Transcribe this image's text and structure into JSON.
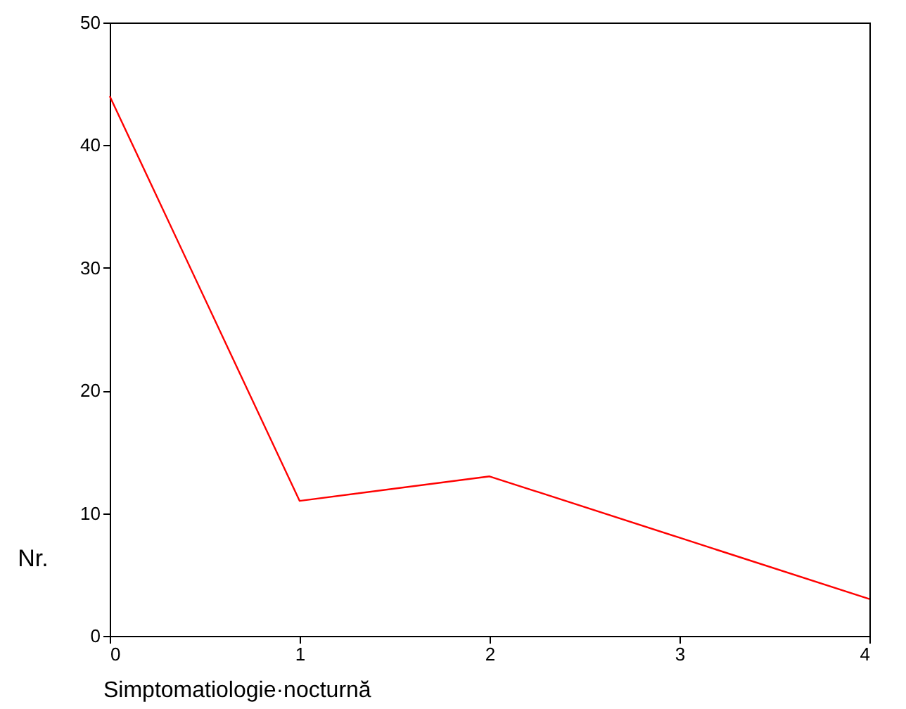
{
  "chart_data": {
    "type": "line",
    "xlabel": "Simptomatiologie·nocturnă",
    "ylabel": "Nr.",
    "x": [
      0,
      1,
      2,
      3,
      4
    ],
    "series": [
      {
        "color": "#ff0000",
        "values": [
          44,
          11,
          13,
          8,
          3
        ]
      }
    ],
    "xlim": [
      0,
      4
    ],
    "xticks": [
      0,
      1,
      2,
      3,
      4
    ],
    "ylim": [
      0,
      50
    ],
    "yticks": [
      0,
      10,
      20,
      30,
      40,
      50
    ],
    "grid": false,
    "marker": "none",
    "line_style": "solid"
  }
}
